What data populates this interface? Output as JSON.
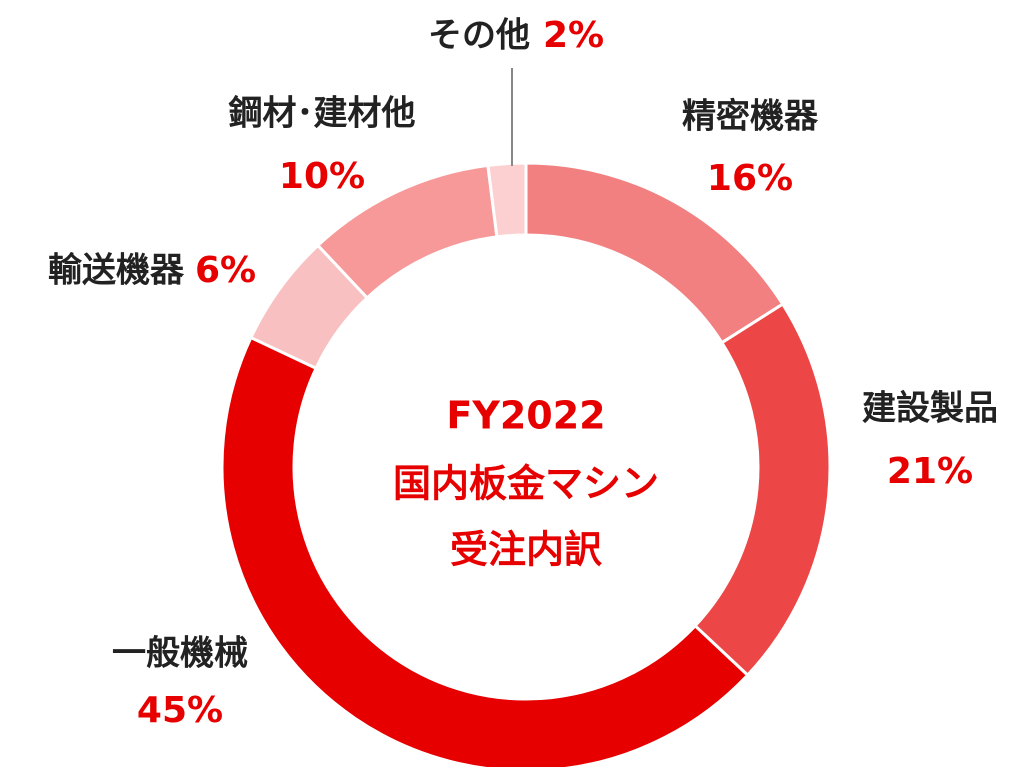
{
  "chart_data": {
    "type": "donut",
    "title": [
      "FY2022",
      "国内板金マシン",
      "受注内訳"
    ],
    "categories": [
      "精密機器",
      "建設製品",
      "一般機械",
      "輸送機器",
      "鋼材･建材他",
      "その他"
    ],
    "values": [
      16,
      21,
      45,
      6,
      10,
      2
    ],
    "value_labels": [
      "16%",
      "21%",
      "45%",
      "6%",
      "10%",
      "2%"
    ],
    "colors": [
      "#f28080",
      "#ec4646",
      "#e60000",
      "#f8c0c0",
      "#f79999",
      "#fcd0d0"
    ]
  }
}
